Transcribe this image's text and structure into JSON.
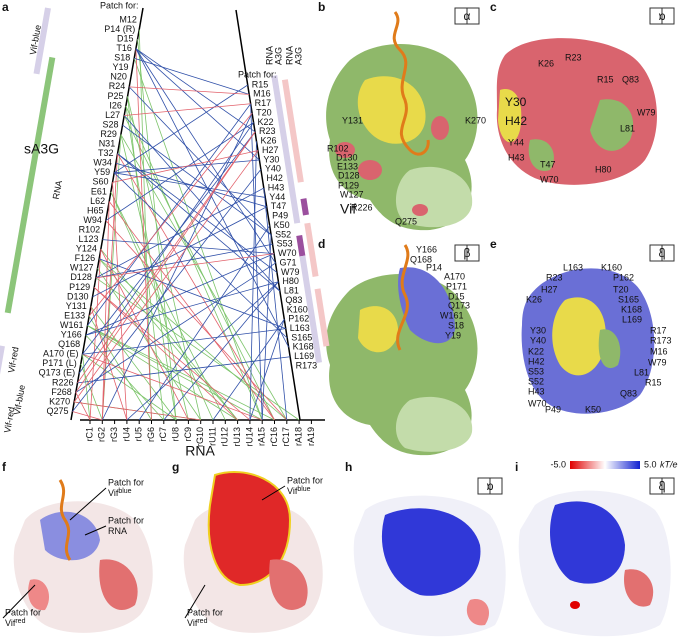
{
  "panel_a": {
    "label": "a",
    "patch_left": "Patch for:",
    "left_bars": [
      "Vif-blue",
      "RNA",
      "Vif-red",
      "Vif-blue",
      "Vif-red"
    ],
    "protein_left": "sA3G",
    "a3g_residues": [
      "M12",
      "P14 (R)",
      "D15",
      "T16",
      "S18",
      "Y19",
      "N20",
      "R24",
      "P25",
      "I26",
      "L27",
      "S28",
      "R29",
      "N31",
      "T32",
      "W34",
      "Y59",
      "S60",
      "E61",
      "L62",
      "H65",
      "W94",
      "R102",
      "L123",
      "Y124",
      "F126",
      "W127",
      "D128",
      "P129",
      "D130",
      "Y131",
      "E133",
      "W161",
      "Y166",
      "Q168",
      "A170 (E)",
      "P171 (L)",
      "Q173 (E)",
      "R226",
      "F268",
      "K270",
      "Q275"
    ],
    "patch_right": "Patch for:",
    "right_headers_blue": [
      "RNA",
      "A3G"
    ],
    "right_headers_red": [
      "RNA",
      "A3G"
    ],
    "protein_right": "Vif",
    "vif_residues": [
      "R15",
      "M16",
      "R17",
      "T20",
      "K22",
      "R23",
      "K26",
      "H27",
      "Y30",
      "Y40",
      "H42",
      "H43",
      "Y44",
      "T47",
      "P49",
      "K50",
      "S52",
      "S53",
      "W70",
      "G71",
      "W79",
      "H80",
      "L81",
      "Q83",
      "K160",
      "P162",
      "L163",
      "S165",
      "K168",
      "L169",
      "R173"
    ],
    "rna_title": "RNA",
    "rna_residues": [
      "rC1",
      "rG2",
      "rG3",
      "rU4",
      "rU5",
      "rG6",
      "rC7",
      "rU8",
      "rC9",
      "rG10",
      "rU11",
      "rU12",
      "rU13",
      "rU14",
      "rA15",
      "rC16",
      "rC17",
      "rA18",
      "rA19"
    ]
  },
  "panel_b": {
    "label": "b",
    "icon": "α",
    "residue_labels": [
      "Y131",
      "K270",
      "R102",
      "D130",
      "E133",
      "D128",
      "P129",
      "W127",
      "R226",
      "Q275"
    ]
  },
  "panel_c": {
    "label": "c",
    "icon": "α",
    "residue_labels": [
      "K26",
      "R23",
      "R15",
      "Q83",
      "Y30",
      "H42",
      "W79",
      "Y44",
      "L81",
      "H43",
      "T47",
      "H80",
      "W70"
    ]
  },
  "panel_d": {
    "label": "d",
    "icon": "β",
    "residue_labels": [
      "Y166",
      "Q168",
      "P14",
      "A170",
      "P171",
      "D15",
      "Q173",
      "W161",
      "S18",
      "Y19"
    ]
  },
  "panel_e": {
    "label": "e",
    "icon": "β",
    "residue_labels": [
      "L163",
      "K160",
      "R23",
      "P162",
      "H27",
      "T20",
      "K26",
      "S165",
      "K168",
      "L169",
      "Y30",
      "R17",
      "Y40",
      "R173",
      "K22",
      "M16",
      "H42",
      "W79",
      "S53",
      "L81",
      "S52",
      "R15",
      "H43",
      "Q83",
      "W70",
      "P49",
      "K50"
    ]
  },
  "panel_f": {
    "label": "f",
    "callouts": [
      {
        "line1": "Patch for",
        "line2": "Vif",
        "sup": "blue"
      },
      {
        "line1": "Patch for",
        "line2": "RNA"
      },
      {
        "line1": "Patch for",
        "line2": "Vif",
        "sup": "red"
      }
    ]
  },
  "panel_g": {
    "label": "g",
    "callouts": [
      {
        "line1": "Patch for",
        "line2": "Vif",
        "sup": "blue"
      },
      {
        "line1": "Patch for",
        "line2": "Vif",
        "sup": "red"
      }
    ]
  },
  "panel_h": {
    "label": "h",
    "icon": "α"
  },
  "panel_i": {
    "label": "i",
    "icon": "β",
    "colorbar": {
      "min_label": "-5.0",
      "max_label": "5.0",
      "unit": "kT/e"
    }
  }
}
